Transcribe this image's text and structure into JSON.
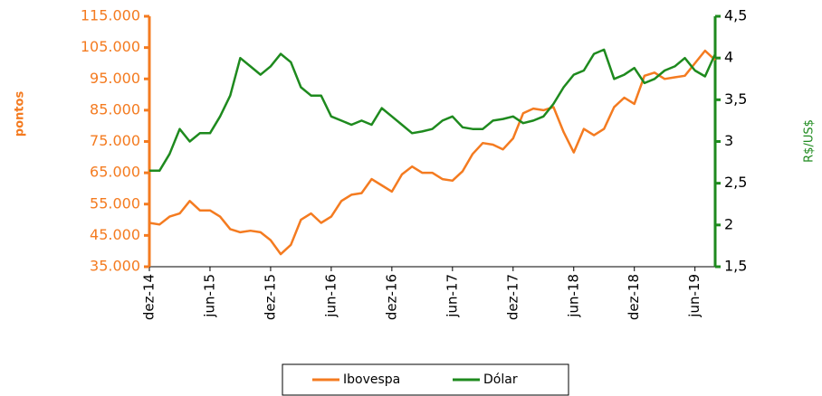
{
  "chart_data": {
    "type": "line",
    "x": [
      "2014-12",
      "2015-01",
      "2015-02",
      "2015-03",
      "2015-04",
      "2015-05",
      "2015-06",
      "2015-07",
      "2015-08",
      "2015-09",
      "2015-10",
      "2015-11",
      "2015-12",
      "2016-01",
      "2016-02",
      "2016-03",
      "2016-04",
      "2016-05",
      "2016-06",
      "2016-07",
      "2016-08",
      "2016-09",
      "2016-10",
      "2016-11",
      "2016-12",
      "2017-01",
      "2017-02",
      "2017-03",
      "2017-04",
      "2017-05",
      "2017-06",
      "2017-07",
      "2017-08",
      "2017-09",
      "2017-10",
      "2017-11",
      "2017-12",
      "2018-01",
      "2018-02",
      "2018-03",
      "2018-04",
      "2018-05",
      "2018-06",
      "2018-07",
      "2018-08",
      "2018-09",
      "2018-10",
      "2018-11",
      "2018-12",
      "2019-01",
      "2019-02",
      "2019-03",
      "2019-04",
      "2019-05",
      "2019-06",
      "2019-07",
      "2019-08"
    ],
    "xlim": [
      "2014-12",
      "2019-08"
    ],
    "xticks": [
      {
        "value": "2014-12",
        "label": "dez-14"
      },
      {
        "value": "2015-06",
        "label": "jun-15"
      },
      {
        "value": "2015-12",
        "label": "dez-15"
      },
      {
        "value": "2016-06",
        "label": "jun-16"
      },
      {
        "value": "2016-12",
        "label": "dez-16"
      },
      {
        "value": "2017-06",
        "label": "jun-17"
      },
      {
        "value": "2017-12",
        "label": "dez-17"
      },
      {
        "value": "2018-06",
        "label": "jun-18"
      },
      {
        "value": "2018-12",
        "label": "dez-18"
      },
      {
        "value": "2019-06",
        "label": "jun-19"
      }
    ],
    "ylabel": "pontos",
    "y2label": "R$/US$",
    "ylim": [
      35000,
      115000
    ],
    "yticks": [
      {
        "value": 35000,
        "label": "35.000"
      },
      {
        "value": 45000,
        "label": "45.000"
      },
      {
        "value": 55000,
        "label": "55.000"
      },
      {
        "value": 65000,
        "label": "65.000"
      },
      {
        "value": 75000,
        "label": "75.000"
      },
      {
        "value": 85000,
        "label": "85.000"
      },
      {
        "value": 95000,
        "label": "95.000"
      },
      {
        "value": 105000,
        "label": "105.000"
      },
      {
        "value": 115000,
        "label": "115.000"
      }
    ],
    "y2lim": [
      1.5,
      4.5
    ],
    "y2ticks": [
      {
        "value": 1.5,
        "label": "1,5"
      },
      2,
      {
        "value": 2.5,
        "label": "2,5"
      },
      3,
      {
        "value": 3.5,
        "label": "3,5"
      },
      4,
      {
        "value": 4.5,
        "label": "4,5"
      }
    ],
    "legend": "bottom",
    "series": [
      {
        "name": "Ibovespa",
        "color": "#f47b20",
        "values": [
          49000,
          48500,
          51000,
          52000,
          56000,
          53000,
          53000,
          51000,
          47000,
          46000,
          46500,
          46000,
          43500,
          39000,
          42000,
          50000,
          52000,
          49000,
          51000,
          56000,
          58000,
          58500,
          63000,
          61000,
          59000,
          64500,
          67000,
          65000,
          65000,
          63000,
          62500,
          65500,
          71000,
          74500,
          74000,
          72500,
          76000,
          84000,
          85500,
          85000,
          86000,
          78000,
          71500,
          79000,
          77000,
          79000,
          86000,
          89000,
          87000,
          96000,
          97000,
          95000,
          95500,
          96000,
          100000,
          104000,
          101000
        ]
      },
      {
        "name": "Dólar",
        "color": "#1e8a1e",
        "axis": "y2",
        "values": [
          2.65,
          2.65,
          2.85,
          3.15,
          3.0,
          3.1,
          3.1,
          3.3,
          3.55,
          4.0,
          3.9,
          3.8,
          3.9,
          4.05,
          3.95,
          3.65,
          3.55,
          3.55,
          3.3,
          3.25,
          3.2,
          3.25,
          3.2,
          3.4,
          3.3,
          3.2,
          3.1,
          3.12,
          3.15,
          3.25,
          3.3,
          3.17,
          3.15,
          3.15,
          3.25,
          3.27,
          3.3,
          3.22,
          3.25,
          3.3,
          3.45,
          3.65,
          3.8,
          3.85,
          4.05,
          4.1,
          3.75,
          3.8,
          3.88,
          3.7,
          3.75,
          3.85,
          3.9,
          4.0,
          3.85,
          3.78,
          4.05
        ]
      }
    ]
  }
}
